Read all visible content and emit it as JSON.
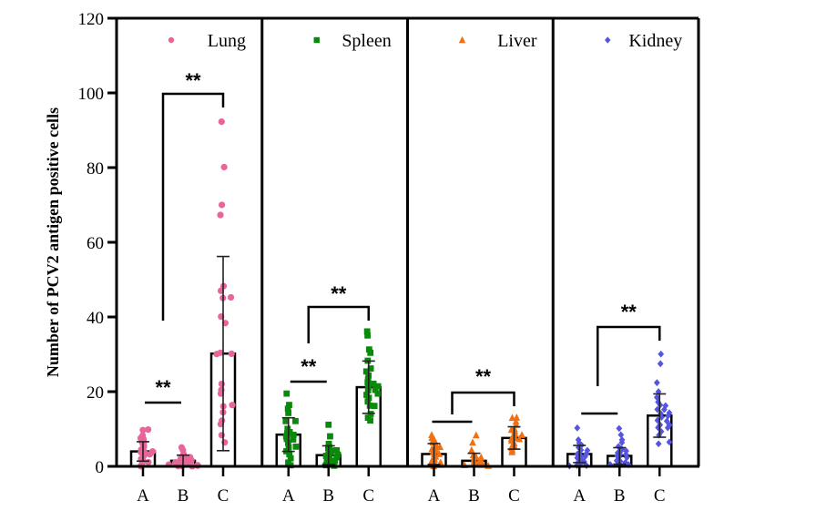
{
  "chart_data": {
    "type": "bar",
    "subtype": "bar-with-scatter-and-sd",
    "ylabel": "Number of PCV2 antigen positive cells",
    "ylim": [
      0,
      120
    ],
    "yticks": [
      0,
      20,
      40,
      60,
      80,
      100,
      120
    ],
    "ytick_labels": [
      "0",
      "20",
      "40",
      "60",
      "80",
      "100",
      "120"
    ],
    "categories": [
      "A",
      "B",
      "C"
    ],
    "grid": false,
    "legend_placement": "top-right of each panel",
    "panels": [
      {
        "name": "Lung",
        "color": "#e8659a",
        "marker": "circle",
        "means": [
          4,
          1.5,
          30.2
        ],
        "sd": [
          2.6,
          1.5,
          26
        ],
        "points": [
          [
            9.5,
            9.5,
            8,
            7.5,
            7,
            6.5,
            6,
            5.5,
            5,
            4.5,
            4,
            4,
            3.5,
            3,
            3,
            2.5,
            2,
            1.5,
            1,
            1,
            0.5,
            0
          ],
          [
            5,
            4,
            3,
            2.5,
            2,
            2,
            1.5,
            1.5,
            1,
            1,
            1,
            0.5,
            0.5,
            0.5,
            0,
            0,
            0,
            0,
            0,
            0
          ],
          [
            92,
            80,
            70,
            67,
            48,
            47,
            45,
            45,
            40,
            38,
            30,
            30,
            30,
            22,
            20,
            19,
            16,
            16,
            14,
            12,
            11,
            8,
            6
          ]
        ],
        "significance": [
          {
            "from": "A",
            "to": "B",
            "label": "**"
          },
          {
            "from": "A",
            "to": "C",
            "label": "**"
          }
        ]
      },
      {
        "name": "Spleen",
        "color": "#0a8a0a",
        "marker": "square",
        "means": [
          8.5,
          3,
          21.2
        ],
        "sd": [
          4.5,
          2.5,
          7
        ],
        "points": [
          [
            19,
            16,
            15,
            14,
            12,
            12,
            10,
            9,
            8.5,
            8,
            8,
            7,
            7,
            6,
            5,
            5,
            4,
            3,
            2,
            1,
            0
          ],
          [
            11,
            8,
            6,
            5,
            4.5,
            4,
            4,
            3.5,
            3,
            3,
            2.5,
            2,
            2,
            1.5,
            1,
            1,
            0.5,
            0,
            0
          ],
          [
            36,
            35,
            31,
            30,
            28,
            26,
            25,
            24,
            23,
            22,
            22,
            21,
            21,
            20,
            20,
            19,
            19,
            18,
            17,
            16,
            16,
            14,
            13,
            12
          ]
        ],
        "significance": [
          {
            "from": "A",
            "to": "B",
            "label": "**"
          },
          {
            "from": "B",
            "to": "C",
            "label": "**"
          }
        ]
      },
      {
        "name": "Liver",
        "color": "#f07014",
        "marker": "triangle",
        "means": [
          3.3,
          1.5,
          7.6
        ],
        "sd": [
          2.8,
          2,
          3
        ],
        "points": [
          [
            8,
            7.5,
            7,
            6.5,
            6,
            5.5,
            5,
            5,
            4.5,
            4,
            3.5,
            3,
            3,
            2.5,
            2,
            1.5,
            1,
            1,
            0.5,
            0,
            0
          ],
          [
            8,
            6,
            4,
            3,
            2.5,
            2,
            2,
            1.5,
            1.5,
            1,
            1,
            0.5,
            0.5,
            0,
            0,
            0,
            0
          ],
          [
            13,
            12.5,
            12,
            11,
            10,
            9.5,
            9,
            8.5,
            8,
            8,
            7.5,
            7,
            7,
            6.5,
            6,
            5.5,
            5,
            4.5,
            4,
            3.5
          ]
        ],
        "significance": [
          {
            "from": "A",
            "to": "B",
            "label": ""
          },
          {
            "from": "B",
            "to": "C",
            "label": "**"
          }
        ]
      },
      {
        "name": "Kidney",
        "color": "#5555e0",
        "marker": "diamond",
        "means": [
          3.3,
          2.8,
          13.6
        ],
        "sd": [
          2.3,
          2.2,
          5.8
        ],
        "points": [
          [
            10,
            7,
            6,
            5.5,
            5,
            4.5,
            4,
            4,
            3.5,
            3,
            3,
            2.5,
            2.5,
            2,
            1.5,
            1,
            1,
            0.5,
            0,
            0,
            0
          ],
          [
            10,
            8,
            7,
            6,
            5,
            4.5,
            4,
            4,
            3.5,
            3,
            3,
            2.5,
            2,
            2,
            1.5,
            1,
            1,
            0.5,
            0,
            0,
            0
          ],
          [
            30,
            27,
            22,
            20,
            18,
            17,
            16,
            16,
            15,
            15,
            14,
            14,
            13,
            13,
            12,
            12,
            11,
            11,
            10,
            10,
            9,
            8,
            6,
            6
          ]
        ],
        "significance": [
          {
            "from": "A",
            "to": "B",
            "label": ""
          },
          {
            "from": "B",
            "to": "C",
            "label": "**"
          }
        ]
      }
    ]
  }
}
